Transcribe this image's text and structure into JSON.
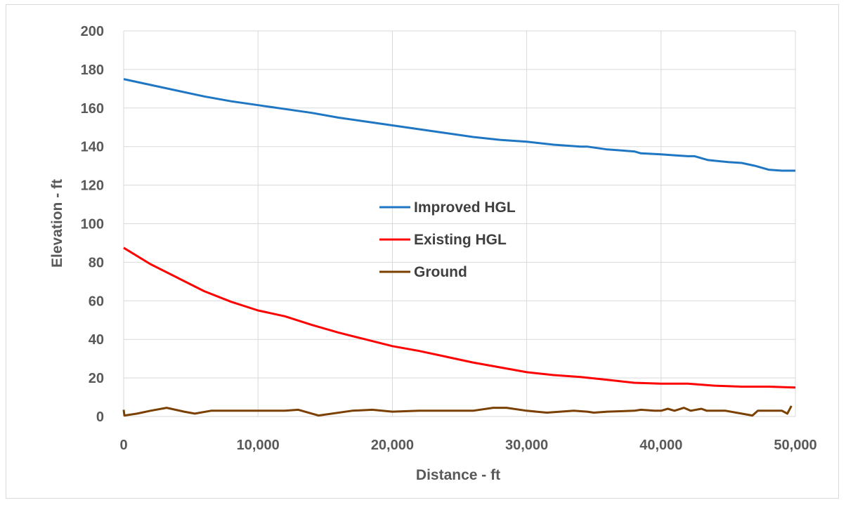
{
  "chart_data": {
    "type": "line",
    "xlabel": "Distance - ft",
    "ylabel": "Elevation - ft",
    "xlim": [
      0,
      50000
    ],
    "ylim": [
      0,
      200
    ],
    "x_ticks": [
      0,
      10000,
      20000,
      30000,
      40000,
      50000
    ],
    "x_tick_labels": [
      "0",
      "10,000",
      "20,000",
      "30,000",
      "40,000",
      "50,000"
    ],
    "y_ticks": [
      0,
      20,
      40,
      60,
      80,
      100,
      120,
      140,
      160,
      180,
      200
    ],
    "y_tick_labels": [
      "0",
      "20",
      "40",
      "60",
      "80",
      "100",
      "120",
      "140",
      "160",
      "180",
      "200"
    ],
    "grid": true,
    "legend_position": "center",
    "series": [
      {
        "name": "Improved HGL",
        "color": "#1f77c4",
        "x": [
          0,
          2000,
          4000,
          6000,
          8000,
          10000,
          12000,
          14000,
          16000,
          18000,
          20000,
          22000,
          24000,
          26000,
          28000,
          30000,
          32000,
          34000,
          34500,
          36000,
          38000,
          38500,
          40000,
          41000,
          42000,
          42500,
          43500,
          45000,
          46000,
          47000,
          48000,
          49000,
          50000
        ],
        "y": [
          175,
          172,
          169,
          166,
          163.5,
          161.5,
          159.5,
          157.5,
          155,
          153,
          151,
          149,
          147,
          145,
          143.5,
          142.5,
          141,
          140,
          140,
          138.5,
          137.5,
          136.5,
          136,
          135.5,
          135,
          135,
          133,
          132,
          131.5,
          130,
          128,
          127.5,
          127.5
        ]
      },
      {
        "name": "Existing HGL",
        "color": "#ff0000",
        "x": [
          0,
          2000,
          4000,
          6000,
          8000,
          10000,
          12000,
          14000,
          16000,
          18000,
          20000,
          22000,
          24000,
          26000,
          28000,
          30000,
          32000,
          34000,
          36000,
          38000,
          40000,
          42000,
          44000,
          46000,
          48000,
          50000
        ],
        "y": [
          87.5,
          79,
          72,
          65,
          59.5,
          55,
          52,
          47.5,
          43.5,
          40,
          36.5,
          34,
          31,
          28,
          25.5,
          23,
          21.5,
          20.5,
          19,
          17.5,
          17,
          17,
          16,
          15.5,
          15.5,
          15
        ]
      },
      {
        "name": "Ground",
        "color": "#7b3f00",
        "x": [
          0,
          50,
          1000,
          2000,
          3200,
          4500,
          5300,
          6500,
          8000,
          10000,
          12000,
          13000,
          14500,
          17000,
          18500,
          20000,
          22000,
          26000,
          27500,
          28500,
          30000,
          31500,
          32500,
          33500,
          34500,
          35000,
          36000,
          38000,
          38500,
          39500,
          40000,
          40500,
          41000,
          41700,
          42200,
          43000,
          43400,
          44800,
          46000,
          46800,
          47200,
          48000,
          49000,
          49400,
          49700
        ],
        "y": [
          3.5,
          0.5,
          1.5,
          3,
          4.5,
          2.5,
          1.5,
          3,
          3,
          3,
          3,
          3.5,
          0.5,
          3,
          3.5,
          2.5,
          3,
          3,
          4.5,
          4.5,
          3,
          2,
          2.5,
          3,
          2.5,
          2,
          2.5,
          3,
          3.5,
          3,
          3,
          4,
          3,
          4.5,
          3,
          4,
          3,
          3,
          1.5,
          0.5,
          3,
          3,
          3,
          1.5,
          5.5
        ]
      }
    ]
  }
}
